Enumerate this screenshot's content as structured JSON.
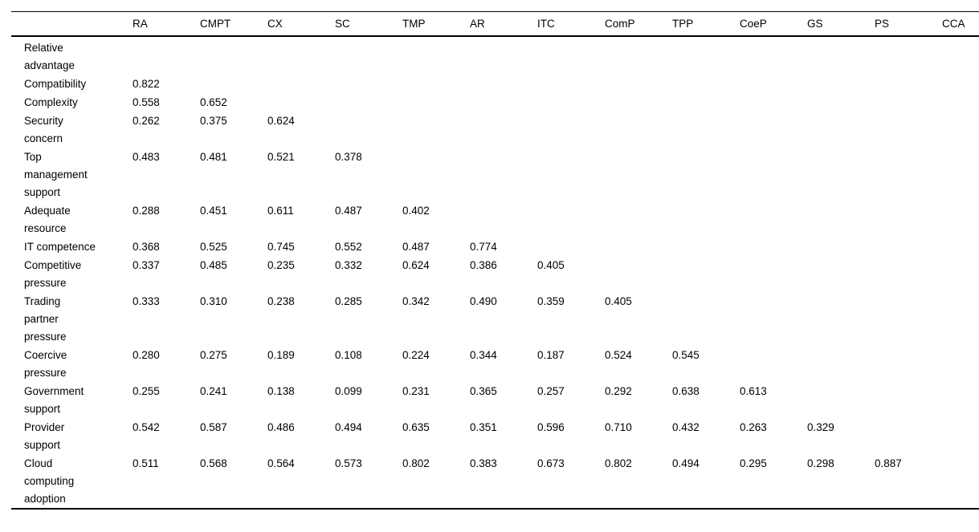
{
  "table": {
    "columns": [
      "",
      "RA",
      "CMPT",
      "CX",
      "SC",
      "TMP",
      "AR",
      "ITC",
      "ComP",
      "TPP",
      "CoeP",
      "GS",
      "PS",
      "CCA"
    ],
    "rows": [
      {
        "label": "Relative advantage",
        "values": []
      },
      {
        "label": "Compatibility",
        "values": [
          "0.822"
        ]
      },
      {
        "label": "Complexity",
        "values": [
          "0.558",
          "0.652"
        ]
      },
      {
        "label": "Security concern",
        "values": [
          "0.262",
          "0.375",
          "0.624"
        ]
      },
      {
        "label": "Top management support",
        "values": [
          "0.483",
          "0.481",
          "0.521",
          "0.378"
        ]
      },
      {
        "label": "Adequate resource",
        "values": [
          "0.288",
          "0.451",
          "0.611",
          "0.487",
          "0.402"
        ]
      },
      {
        "label": "IT competence",
        "values": [
          "0.368",
          "0.525",
          "0.745",
          "0.552",
          "0.487",
          "0.774"
        ]
      },
      {
        "label": "Competitive pressure",
        "values": [
          "0.337",
          "0.485",
          "0.235",
          "0.332",
          "0.624",
          "0.386",
          "0.405"
        ]
      },
      {
        "label": "Trading partner pressure",
        "values": [
          "0.333",
          "0.310",
          "0.238",
          "0.285",
          "0.342",
          "0.490",
          "0.359",
          "0.405"
        ]
      },
      {
        "label": "Coercive pressure",
        "values": [
          "0.280",
          "0.275",
          "0.189",
          "0.108",
          "0.224",
          "0.344",
          "0.187",
          "0.524",
          "0.545"
        ]
      },
      {
        "label": "Government support",
        "values": [
          "0.255",
          "0.241",
          "0.138",
          "0.099",
          "0.231",
          "0.365",
          "0.257",
          "0.292",
          "0.638",
          "0.613"
        ]
      },
      {
        "label": "Provider support",
        "values": [
          "0.542",
          "0.587",
          "0.486",
          "0.494",
          "0.635",
          "0.351",
          "0.596",
          "0.710",
          "0.432",
          "0.263",
          "0.329"
        ]
      },
      {
        "label": "Cloud computing adoption",
        "values": [
          "0.511",
          "0.568",
          "0.564",
          "0.573",
          "0.802",
          "0.383",
          "0.673",
          "0.802",
          "0.494",
          "0.295",
          "0.298",
          "0.887"
        ]
      }
    ],
    "colors": {
      "text": "#000000",
      "rule": "#000000",
      "background": "#ffffff"
    }
  }
}
